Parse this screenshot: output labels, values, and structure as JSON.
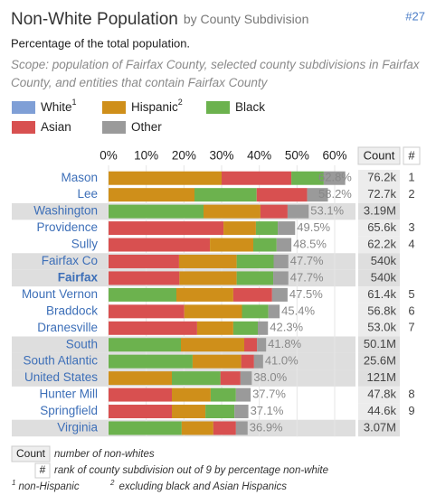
{
  "header": {
    "title": "Non-White Population",
    "title_suffix": "by County Subdivision",
    "badge": "#27",
    "subtitle": "Percentage of the total population.",
    "scope": "Scope: population of Fairfax County, selected county subdivisions in Fairfax County, and entities that contain Fairfax County"
  },
  "chart_data": {
    "type": "stacked-bar-horizontal",
    "categories": [
      "Mason",
      "Lee",
      "Washington",
      "Providence",
      "Sully",
      "Fairfax Co",
      "Fairfax",
      "Mount Vernon",
      "Braddock",
      "Dranesville",
      "South",
      "South Atlantic",
      "United States",
      "Hunter Mill",
      "Springfield",
      "Virginia"
    ],
    "highlighted": [
      false,
      false,
      true,
      false,
      false,
      true,
      true,
      false,
      false,
      false,
      true,
      true,
      true,
      false,
      false,
      true
    ],
    "bold": [
      false,
      false,
      false,
      false,
      false,
      false,
      true,
      false,
      false,
      false,
      false,
      false,
      false,
      false,
      false,
      false
    ],
    "series": [
      {
        "name": "White",
        "footnote": "1",
        "color": "#7f9fd6",
        "values": [
          null,
          null,
          null,
          null,
          null,
          null,
          null,
          null,
          null,
          null,
          null,
          null,
          null,
          null,
          null,
          null
        ]
      },
      {
        "name": "Hispanic",
        "footnote": "2",
        "color": "#cf8f1a",
        "values": [
          30.0,
          22.8,
          15.1,
          8.6,
          11.5,
          15.3,
          15.2,
          15.1,
          15.3,
          9.6,
          16.8,
          12.9,
          16.8,
          10.3,
          8.9,
          8.4
        ]
      },
      {
        "name": "Black",
        "color": "#6cb24e",
        "values": [
          8.6,
          16.5,
          25.2,
          5.8,
          6.2,
          9.8,
          9.7,
          18.0,
          7.0,
          6.5,
          19.2,
          22.3,
          12.9,
          6.7,
          7.7,
          19.4
        ]
      },
      {
        "name": "Asian",
        "color": "#d85050",
        "values": [
          18.5,
          13.4,
          7.2,
          30.5,
          26.9,
          18.7,
          18.8,
          10.3,
          20.1,
          23.5,
          3.4,
          3.4,
          5.3,
          16.8,
          16.8,
          6.0
        ]
      },
      {
        "name": "Other",
        "color": "#9a9a9a",
        "values": [
          5.7,
          5.5,
          5.6,
          4.6,
          3.9,
          3.9,
          4.0,
          4.1,
          3.0,
          2.7,
          2.4,
          2.4,
          3.0,
          3.9,
          3.7,
          3.1
        ]
      }
    ],
    "totals": [
      62.8,
      58.2,
      53.1,
      49.5,
      48.5,
      47.7,
      47.7,
      47.5,
      45.4,
      42.3,
      41.8,
      41.0,
      38.0,
      37.7,
      37.1,
      36.9
    ],
    "total_labels": [
      "62.8%",
      "58.2%",
      "53.1%",
      "49.5%",
      "48.5%",
      "47.7%",
      "47.7%",
      "47.5%",
      "45.4%",
      "42.3%",
      "41.8%",
      "41.0%",
      "38.0%",
      "37.7%",
      "37.1%",
      "36.9%"
    ],
    "count_header": "Count",
    "rank_header": "#",
    "counts": [
      "76.2k",
      "72.7k",
      "3.19M",
      "65.6k",
      "62.2k",
      "540k",
      "540k",
      "61.4k",
      "56.8k",
      "53.0k",
      "50.1M",
      "25.6M",
      "121M",
      "47.8k",
      "44.6k",
      "3.07M"
    ],
    "ranks": [
      "1",
      "2",
      null,
      "3",
      "4",
      null,
      null,
      "5",
      "6",
      "7",
      null,
      null,
      null,
      "8",
      "9",
      null
    ],
    "xlim": [
      0,
      60
    ],
    "xticks": [
      {
        "value": 0,
        "label": "0%"
      },
      {
        "value": 10,
        "label": "10%"
      },
      {
        "value": 20,
        "label": "20%"
      },
      {
        "value": 30,
        "label": "30%"
      },
      {
        "value": 40,
        "label": "40%"
      },
      {
        "value": 50,
        "label": "50%"
      },
      {
        "value": 60,
        "label": "60%"
      }
    ],
    "grid": true
  },
  "footer": {
    "count_key": "Count",
    "count_note": "number of non-whites",
    "rank_key": "#",
    "rank_note": "rank of county subdivision out of 9 by percentage non-white",
    "note1_mark": "1",
    "note1": "non-Hispanic",
    "note2_mark": "2",
    "note2": "excluding black and Asian Hispanics"
  }
}
